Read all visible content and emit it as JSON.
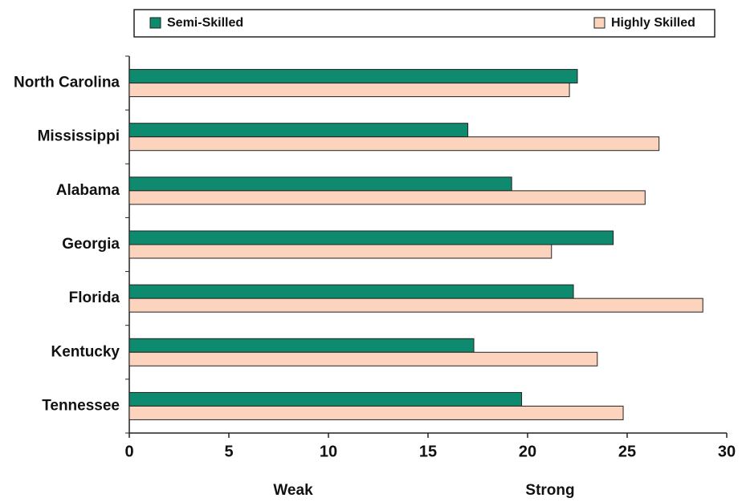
{
  "chart_data": {
    "type": "hbar",
    "categories": [
      "North Carolina",
      "Mississippi",
      "Alabama",
      "Georgia",
      "Florida",
      "Kentucky",
      "Tennessee"
    ],
    "series": [
      {
        "name": "Semi-Skilled",
        "color": "#0e8a6e",
        "values": [
          22.5,
          17.0,
          19.2,
          24.3,
          22.3,
          17.3,
          19.7
        ]
      },
      {
        "name": "Highly Skilled",
        "color": "#fcd3bd",
        "values": [
          22.1,
          26.6,
          25.9,
          21.2,
          28.8,
          23.5,
          24.8
        ]
      }
    ],
    "xlim": [
      0,
      30
    ],
    "xticks": [
      0,
      5,
      10,
      15,
      20,
      25,
      30
    ],
    "annotations": [
      "Weak",
      "Strong"
    ],
    "legend": "top"
  }
}
